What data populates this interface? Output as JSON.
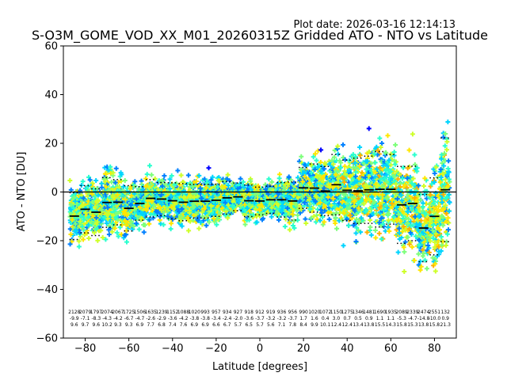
{
  "chart_data": {
    "type": "scatter",
    "plot_date": "Plot date: 2026-03-16 12:14:13",
    "title": "S-O3M_GOME_VOD_XX_M01_20260315Z Gridded ATO - NTO vs Latitude",
    "xlabel": "Latitude [degrees]",
    "ylabel": "ATO - NTO [DU]",
    "xlim": [
      -90,
      90
    ],
    "ylim": [
      -60,
      60
    ],
    "xticks": [
      -80,
      -60,
      -40,
      -20,
      0,
      20,
      40,
      60,
      80
    ],
    "yticks": [
      -60,
      -40,
      -20,
      0,
      20,
      40,
      60
    ],
    "xtick_labels": [
      "−80",
      "−60",
      "−40",
      "−20",
      "0",
      "20",
      "40",
      "60",
      "80"
    ],
    "ytick_labels": [
      "−60",
      "−40",
      "−20",
      "0",
      "20",
      "40",
      "60"
    ],
    "zero_line": 0,
    "bin_centers": [
      -85,
      -80,
      -75,
      -70,
      -65,
      -60,
      -55,
      -50,
      -45,
      -40,
      -35,
      -30,
      -25,
      -20,
      -15,
      -10,
      -5,
      0,
      5,
      10,
      15,
      20,
      25,
      30,
      35,
      40,
      45,
      50,
      55,
      60,
      65,
      70,
      75,
      80,
      85
    ],
    "counts": [
      "2128",
      "2079",
      "1797",
      "2074",
      "2067",
      "1725",
      "1506",
      "1635",
      "1239",
      "1152",
      "1088",
      "1020",
      "993",
      "957",
      "934",
      "927",
      "918",
      "912",
      "919",
      "936",
      "956",
      "990",
      "1020",
      "1072",
      "1150",
      "1275",
      "1346",
      "1481",
      "1690",
      "1935",
      "2089",
      "2339",
      "2474",
      "2551",
      "132"
    ],
    "means": [
      -9.9,
      -7.1,
      -8.3,
      -4.3,
      -4.2,
      -6.7,
      -4.7,
      -2.6,
      -2.9,
      -3.6,
      -4.2,
      -3.8,
      -3.8,
      -3.4,
      -2.4,
      -2.0,
      -3.6,
      -3.7,
      -3.2,
      -3.2,
      -3.7,
      1.7,
      1.6,
      0.4,
      3.0,
      0.7,
      0.5,
      0.9,
      1.1,
      1.1,
      -5.3,
      -4.7,
      -14.8,
      -10.0,
      0.9
    ],
    "mean_labels": [
      "-9.9",
      "-7.1",
      "-8.3",
      "-4.3",
      "-4.2",
      "-6.7",
      "-4.7",
      "-2.6",
      "-2.9",
      "-3.6",
      "-4.2",
      "-3.8",
      "-3.8",
      "-3.4",
      "-2.4",
      "-2.0",
      "-3.6",
      "-3.7",
      "-3.2",
      "-3.2",
      "-3.7",
      "1.7",
      "1.6",
      "0.4",
      "3.0",
      "0.7",
      "0.5",
      "0.9",
      "1.1",
      "1.1",
      "-5.3",
      "-4.7",
      "-14.8",
      "-10.0",
      "0.9"
    ],
    "stdevs": [
      9.6,
      9.7,
      9.6,
      10.2,
      9.3,
      9.3,
      6.9,
      7.7,
      6.8,
      7.4,
      7.6,
      6.9,
      6.9,
      6.6,
      6.7,
      5.7,
      6.5,
      5.7,
      5.6,
      7.1,
      7.8,
      8.4,
      9.9,
      10.1,
      12.4,
      12.4,
      13.4,
      13.8,
      15.5,
      14.3,
      15.8,
      15.3,
      13.8,
      15.8,
      21.3
    ],
    "std_labels": [
      "9.6",
      "9.7",
      "9.6",
      "10.2",
      "9.3",
      "9.3",
      "6.9",
      "7.7",
      "6.8",
      "7.4",
      "7.6",
      "6.9",
      "6.9",
      "6.6",
      "6.7",
      "5.7",
      "6.5",
      "5.7",
      "5.6",
      "7.1",
      "7.8",
      "8.4",
      "9.9",
      "10.1",
      "12.4",
      "12.4",
      "13.4",
      "13.8",
      "15.5",
      "14.3",
      "15.8",
      "15.3",
      "13.8",
      "15.8",
      "21.3"
    ],
    "scatter_colors": [
      "#0000ff",
      "#0080ff",
      "#00d4ff",
      "#29ffce",
      "#7dff7a",
      "#ceff29",
      "#ffe600",
      "#ffb000"
    ],
    "mean_color": "#000000",
    "std_color": "#000000",
    "zero_line_color": "#000000"
  }
}
